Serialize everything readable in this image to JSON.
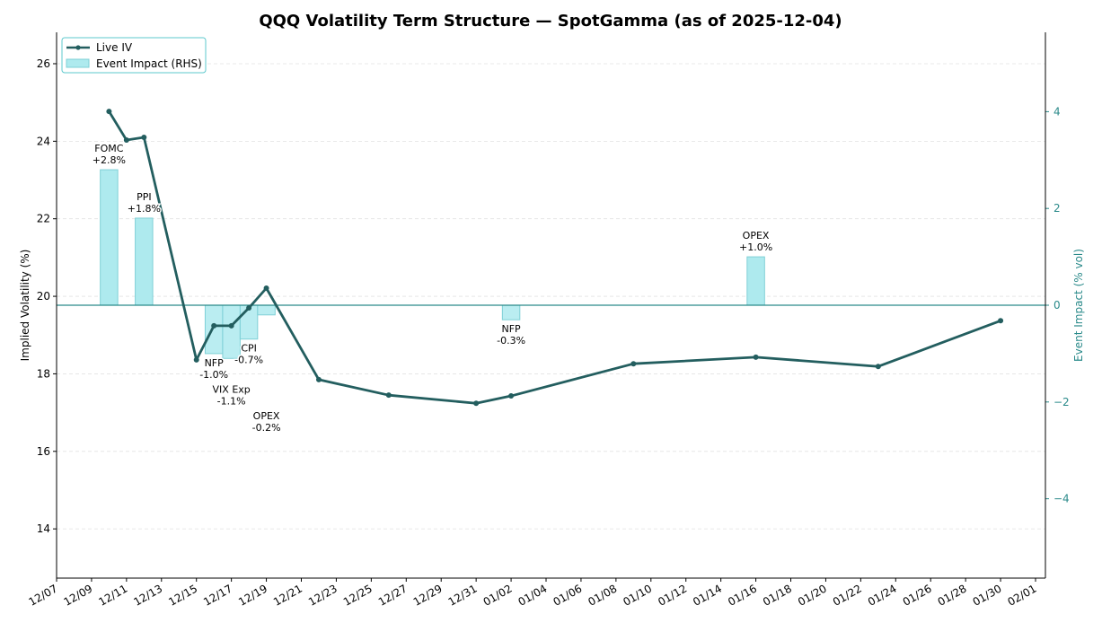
{
  "chart_data": {
    "type": "line",
    "title": "QQQ Volatility Term Structure — SpotGamma (as of 2025-12-04)",
    "ylabel": "Implied Volatility (%)",
    "ylabel_right": "Event Impact (% vol)",
    "xlabel": "",
    "xlim": [
      "2025-12-07",
      "2026-02-01"
    ],
    "ylim": [
      12.73,
      26.81
    ],
    "ylim_right": [
      -5.64,
      5.64
    ],
    "x_ticks": [
      "12/07",
      "12/09",
      "12/11",
      "12/13",
      "12/15",
      "12/17",
      "12/19",
      "12/21",
      "12/23",
      "12/25",
      "12/27",
      "12/29",
      "12/31",
      "01/02",
      "01/04",
      "01/06",
      "01/08",
      "01/10",
      "01/12",
      "01/14",
      "01/16",
      "01/18",
      "01/20",
      "01/22",
      "01/24",
      "01/26",
      "01/28",
      "01/30",
      "02/01"
    ],
    "y_ticks": [
      14,
      16,
      18,
      20,
      22,
      24,
      26
    ],
    "y_ticks_right": [
      -4,
      -2,
      0,
      2,
      4
    ],
    "grid": "horizontal dashed",
    "legend": {
      "placement": "top-left",
      "entries": [
        "Live IV",
        "Event Impact (RHS)"
      ]
    },
    "series": [
      {
        "name": "Live IV",
        "type": "line",
        "color": "#235e5f",
        "points": [
          {
            "x": "2025-12-10",
            "y": 24.77
          },
          {
            "x": "2025-12-11",
            "y": 24.03
          },
          {
            "x": "2025-12-12",
            "y": 24.1
          },
          {
            "x": "2025-12-15",
            "y": 18.36
          },
          {
            "x": "2025-12-16",
            "y": 19.24
          },
          {
            "x": "2025-12-17",
            "y": 19.24
          },
          {
            "x": "2025-12-18",
            "y": 19.7
          },
          {
            "x": "2025-12-19",
            "y": 20.21
          },
          {
            "x": "2025-12-22",
            "y": 17.85
          },
          {
            "x": "2025-12-26",
            "y": 17.45
          },
          {
            "x": "2025-12-31",
            "y": 17.24
          },
          {
            "x": "2026-01-02",
            "y": 17.43
          },
          {
            "x": "2026-01-09",
            "y": 18.26
          },
          {
            "x": "2026-01-16",
            "y": 18.43
          },
          {
            "x": "2026-01-23",
            "y": 18.19
          },
          {
            "x": "2026-01-30",
            "y": 19.37
          }
        ]
      },
      {
        "name": "Event Impact (RHS)",
        "type": "bar",
        "axis": "right",
        "color": "#aeeaee",
        "points": [
          {
            "x": "2025-12-10",
            "y": 2.8,
            "event": "FOMC",
            "label": "+2.8%"
          },
          {
            "x": "2025-12-12",
            "y": 1.8,
            "event": "PPI",
            "label": "+1.8%"
          },
          {
            "x": "2025-12-16",
            "y": -1.0,
            "event": "NFP",
            "label": "-1.0%"
          },
          {
            "x": "2025-12-17",
            "y": -1.1,
            "event": "VIX Exp",
            "label": "-1.1%"
          },
          {
            "x": "2025-12-18",
            "y": -0.7,
            "event": "CPI",
            "label": "-0.7%"
          },
          {
            "x": "2025-12-19",
            "y": -0.2,
            "event": "OPEX",
            "label": "-0.2%"
          },
          {
            "x": "2026-01-02",
            "y": -0.3,
            "event": "NFP",
            "label": "-0.3%"
          },
          {
            "x": "2026-01-16",
            "y": 1.0,
            "event": "OPEX",
            "label": "+1.0%"
          }
        ]
      }
    ]
  }
}
